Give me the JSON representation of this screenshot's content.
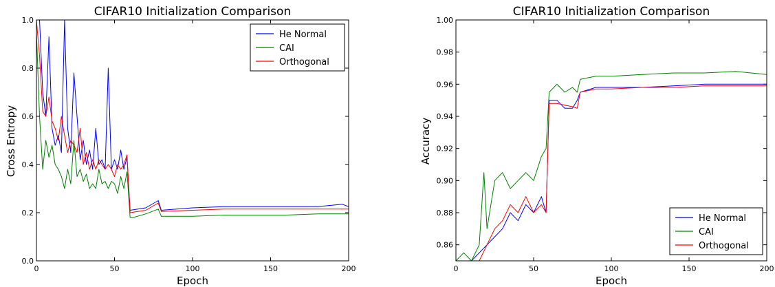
{
  "figure": {
    "colors": {
      "he_normal": "#0000ff",
      "cai": "#008000",
      "orthogonal": "#ff0000"
    }
  },
  "chart_data": [
    {
      "type": "line",
      "title": "CIFAR10 Initialization Comparison",
      "xlabel": "Epoch",
      "ylabel": "Cross Entropy",
      "xlim": [
        0,
        200
      ],
      "ylim": [
        0.0,
        1.0
      ],
      "xticks": [
        "0",
        "50",
        "100",
        "150",
        "200"
      ],
      "yticks": [
        "0.0",
        "0.2",
        "0.4",
        "0.6",
        "0.8",
        "1.0"
      ],
      "grid": false,
      "legend_position": "top-right",
      "series": [
        {
          "name": "He Normal",
          "color": "#0000ff",
          "x": [
            0,
            2,
            4,
            6,
            8,
            10,
            12,
            14,
            16,
            18,
            20,
            22,
            24,
            26,
            28,
            30,
            32,
            34,
            36,
            38,
            40,
            42,
            44,
            46,
            48,
            50,
            52,
            54,
            56,
            58,
            60,
            70,
            78,
            80,
            100,
            120,
            140,
            160,
            180,
            196,
            200
          ],
          "values": [
            1.0,
            1.0,
            0.7,
            0.6,
            0.93,
            0.55,
            0.48,
            0.52,
            0.45,
            1.0,
            0.55,
            0.45,
            0.78,
            0.6,
            0.42,
            0.5,
            0.4,
            0.46,
            0.38,
            0.55,
            0.4,
            0.42,
            0.38,
            0.8,
            0.38,
            0.42,
            0.38,
            0.46,
            0.38,
            0.43,
            0.21,
            0.22,
            0.25,
            0.21,
            0.22,
            0.225,
            0.225,
            0.225,
            0.225,
            0.235,
            0.225
          ]
        },
        {
          "name": "CAI",
          "color": "#008000",
          "x": [
            0,
            2,
            4,
            6,
            8,
            10,
            12,
            14,
            16,
            18,
            20,
            22,
            24,
            26,
            28,
            30,
            32,
            34,
            36,
            38,
            40,
            42,
            44,
            46,
            48,
            50,
            52,
            54,
            56,
            58,
            60,
            62,
            70,
            78,
            80,
            100,
            120,
            140,
            160,
            180,
            200
          ],
          "values": [
            0.95,
            0.6,
            0.38,
            0.5,
            0.43,
            0.48,
            0.4,
            0.38,
            0.35,
            0.3,
            0.38,
            0.32,
            0.5,
            0.35,
            0.38,
            0.33,
            0.36,
            0.3,
            0.32,
            0.3,
            0.38,
            0.32,
            0.33,
            0.3,
            0.33,
            0.32,
            0.28,
            0.35,
            0.3,
            0.37,
            0.18,
            0.18,
            0.195,
            0.215,
            0.185,
            0.185,
            0.19,
            0.19,
            0.19,
            0.195,
            0.195
          ]
        },
        {
          "name": "Orthogonal",
          "color": "#ff0000",
          "x": [
            0,
            2,
            4,
            6,
            8,
            10,
            12,
            14,
            16,
            18,
            20,
            22,
            24,
            26,
            28,
            30,
            32,
            34,
            36,
            38,
            40,
            42,
            44,
            46,
            48,
            50,
            52,
            54,
            56,
            58,
            60,
            70,
            78,
            80,
            100,
            120,
            140,
            160,
            180,
            200
          ],
          "values": [
            1.0,
            0.85,
            0.62,
            0.6,
            0.68,
            0.58,
            0.55,
            0.5,
            0.6,
            0.52,
            0.45,
            0.5,
            0.48,
            0.45,
            0.55,
            0.4,
            0.45,
            0.38,
            0.42,
            0.38,
            0.42,
            0.4,
            0.38,
            0.4,
            0.38,
            0.35,
            0.4,
            0.38,
            0.4,
            0.44,
            0.2,
            0.21,
            0.24,
            0.205,
            0.21,
            0.215,
            0.215,
            0.215,
            0.215,
            0.215
          ]
        }
      ]
    },
    {
      "type": "line",
      "title": "CIFAR10 Initialization Comparison",
      "xlabel": "Epoch",
      "ylabel": "Accuracy",
      "xlim": [
        0,
        200
      ],
      "ylim": [
        0.85,
        1.0
      ],
      "xticks": [
        "0",
        "50",
        "100",
        "150",
        "200"
      ],
      "yticks": [
        "0.86",
        "0.88",
        "0.90",
        "0.92",
        "0.94",
        "0.96",
        "0.98",
        "1.00"
      ],
      "grid": false,
      "legend_position": "bottom-right",
      "series": [
        {
          "name": "He Normal",
          "color": "#0000ff",
          "x": [
            0,
            5,
            10,
            15,
            20,
            25,
            30,
            35,
            40,
            45,
            50,
            55,
            58,
            60,
            65,
            70,
            75,
            78,
            80,
            90,
            100,
            120,
            140,
            160,
            180,
            200
          ],
          "values": [
            0.85,
            0.85,
            0.85,
            0.855,
            0.86,
            0.865,
            0.87,
            0.88,
            0.875,
            0.885,
            0.88,
            0.89,
            0.88,
            0.95,
            0.95,
            0.945,
            0.945,
            0.95,
            0.955,
            0.958,
            0.958,
            0.958,
            0.959,
            0.96,
            0.96,
            0.96
          ]
        },
        {
          "name": "CAI",
          "color": "#008000",
          "x": [
            0,
            5,
            10,
            15,
            18,
            20,
            25,
            30,
            35,
            40,
            45,
            50,
            55,
            58,
            60,
            65,
            70,
            75,
            78,
            80,
            90,
            100,
            120,
            140,
            160,
            180,
            200
          ],
          "values": [
            0.85,
            0.855,
            0.85,
            0.86,
            0.905,
            0.87,
            0.9,
            0.905,
            0.895,
            0.9,
            0.905,
            0.9,
            0.915,
            0.92,
            0.955,
            0.96,
            0.955,
            0.958,
            0.955,
            0.963,
            0.965,
            0.965,
            0.966,
            0.967,
            0.967,
            0.968,
            0.966
          ]
        },
        {
          "name": "Orthogonal",
          "color": "#ff0000",
          "x": [
            0,
            5,
            10,
            15,
            20,
            25,
            30,
            35,
            40,
            45,
            50,
            55,
            58,
            60,
            65,
            70,
            75,
            78,
            80,
            90,
            100,
            120,
            140,
            160,
            180,
            200
          ],
          "values": [
            0.85,
            0.85,
            0.85,
            0.85,
            0.86,
            0.87,
            0.875,
            0.885,
            0.88,
            0.89,
            0.88,
            0.885,
            0.88,
            0.948,
            0.948,
            0.947,
            0.946,
            0.945,
            0.955,
            0.957,
            0.957,
            0.958,
            0.958,
            0.959,
            0.959,
            0.959
          ]
        }
      ]
    }
  ]
}
